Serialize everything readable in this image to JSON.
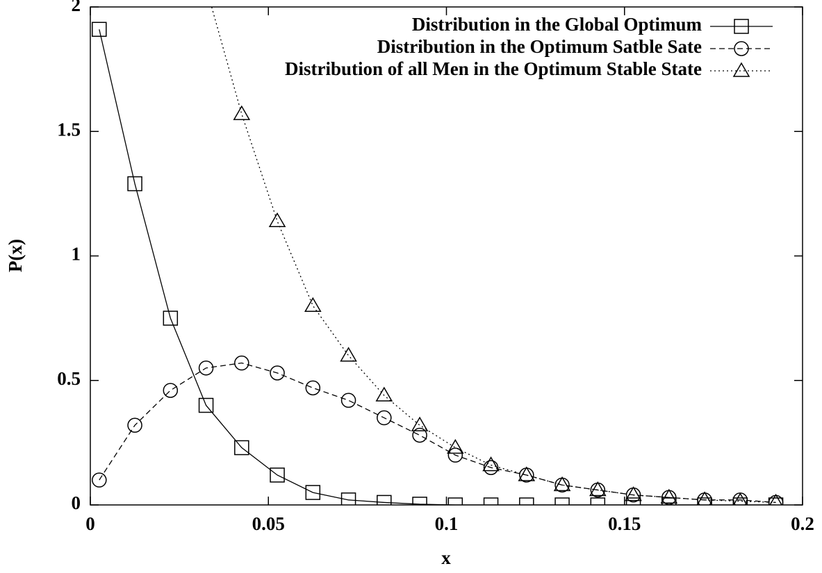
{
  "chart_data": {
    "type": "line",
    "xlabel": "x",
    "ylabel": "P(x)",
    "x": [
      0.0025,
      0.0125,
      0.0225,
      0.0325,
      0.0425,
      0.0525,
      0.0625,
      0.0725,
      0.0825,
      0.0925,
      0.1025,
      0.1125,
      0.1225,
      0.1325,
      0.1425,
      0.1525,
      0.1625,
      0.1725,
      0.1825,
      0.1925
    ],
    "series": [
      {
        "name": "Distribution in the Global Optimum",
        "color": "#000000",
        "line_style": "solid",
        "marker": "square",
        "values": [
          1.91,
          1.29,
          0.75,
          0.4,
          0.23,
          0.12,
          0.05,
          0.02,
          0.01,
          0.003,
          0,
          0,
          0,
          0,
          0,
          0,
          0,
          0,
          0,
          0
        ]
      },
      {
        "name": "Distribution in the Optimum Satble Sate",
        "color": "#000000",
        "line_style": "dashed",
        "marker": "circle",
        "values": [
          0.1,
          0.32,
          0.46,
          0.55,
          0.57,
          0.53,
          0.47,
          0.42,
          0.35,
          0.28,
          0.2,
          0.15,
          0.12,
          0.08,
          0.06,
          0.04,
          0.03,
          0.02,
          0.02,
          0.01
        ]
      },
      {
        "name": "Distribution of all Men in the Optimum Stable State",
        "color": "#000000",
        "line_style": "dotted",
        "marker": "triangle",
        "values": [
          null,
          null,
          null,
          2.08,
          1.57,
          1.14,
          0.8,
          0.6,
          0.44,
          0.32,
          0.23,
          0.16,
          0.12,
          0.08,
          0.06,
          0.04,
          0.03,
          0.02,
          0.015,
          0.01
        ]
      }
    ],
    "xlim": [
      0,
      0.2
    ],
    "xticks": [
      0,
      0.05,
      0.1,
      0.15,
      0.2
    ],
    "ylim": [
      0,
      2
    ],
    "yticks": [
      0,
      0.5,
      1,
      1.5,
      2
    ],
    "legend": "upper right"
  }
}
